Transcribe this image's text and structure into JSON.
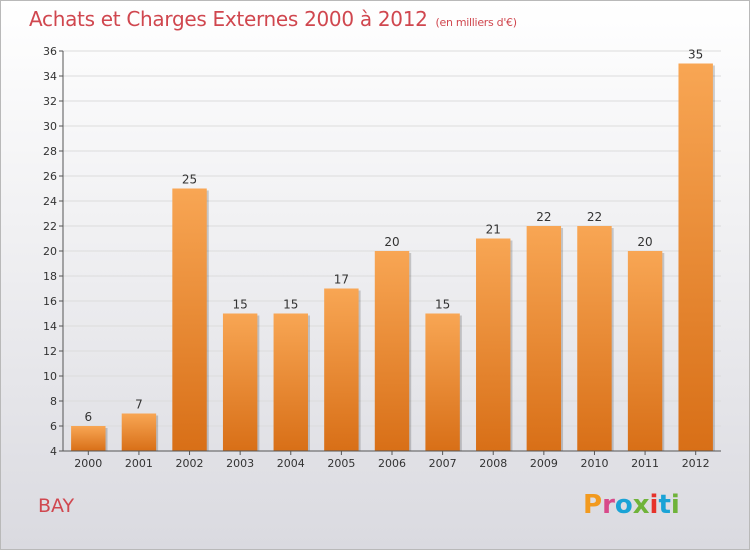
{
  "header": {
    "title": "Achats et Charges Externes 2000 à 2012",
    "unit": "(en milliers d'€)"
  },
  "footer": {
    "commune": "BAY",
    "logo": "Proxiti"
  },
  "colors": {
    "title": "#d0474f",
    "bar_top": "#f8a654",
    "bar_bottom": "#d86f17",
    "grid": "#dcdcdc",
    "axis": "#555555",
    "logo_letters": [
      "#f29a1f",
      "#d84a8a",
      "#1aa3d6",
      "#6fb33a",
      "#e6332a",
      "#1aa3d6",
      "#6fb33a"
    ]
  },
  "chart_data": {
    "type": "bar",
    "title": "Achats et Charges Externes 2000 à 2012",
    "subtitle": "(en milliers d'€)",
    "xlabel": "",
    "ylabel": "",
    "categories": [
      "2000",
      "2001",
      "2002",
      "2003",
      "2004",
      "2005",
      "2006",
      "2007",
      "2008",
      "2009",
      "2010",
      "2011",
      "2012"
    ],
    "values": [
      6,
      7,
      25,
      15,
      15,
      17,
      20,
      15,
      21,
      22,
      22,
      20,
      35
    ],
    "ylim": [
      4,
      36
    ],
    "yticks": [
      4,
      6,
      8,
      10,
      12,
      14,
      16,
      18,
      20,
      22,
      24,
      26,
      28,
      30,
      32,
      34,
      36
    ],
    "grid": true,
    "data_labels": true
  }
}
